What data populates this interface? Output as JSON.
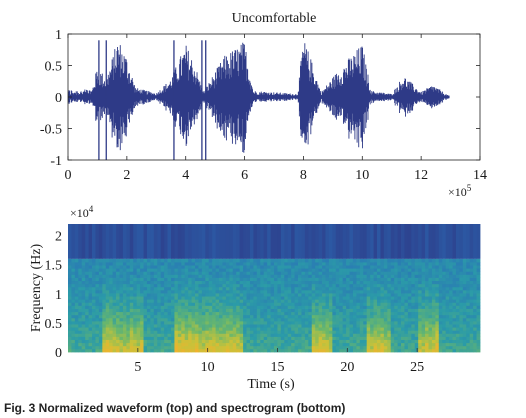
{
  "chart_data": [
    {
      "type": "line",
      "title": "Uncomfortable",
      "xlabel": "",
      "ylabel": "",
      "x_multiplier_label": "×10",
      "x_multiplier_exp": "5",
      "xlim": [
        0,
        14
      ],
      "ylim": [
        -1,
        1
      ],
      "x_ticks": [
        "0",
        "2",
        "4",
        "6",
        "8",
        "10",
        "12",
        "14"
      ],
      "y_ticks": [
        "-1",
        "-0.5",
        "0",
        "0.5",
        "1"
      ],
      "series": [
        {
          "color": "#2e3a87",
          "envelope_x": [
            0.8,
            1.0,
            1.3,
            1.7,
            2.0,
            2.3,
            3.0,
            3.5,
            4.0,
            4.3,
            4.6,
            5.3,
            6.0,
            6.3,
            7.8,
            8.0,
            8.3,
            8.6,
            9.3,
            10.0,
            10.3,
            11.0,
            11.4,
            12.0,
            12.4,
            12.9
          ],
          "envelope_amp": [
            0.08,
            0.5,
            0.3,
            0.95,
            0.65,
            0.15,
            0.06,
            0.3,
            0.85,
            0.55,
            0.08,
            0.65,
            0.9,
            0.1,
            0.05,
            0.95,
            0.55,
            0.08,
            0.5,
            0.85,
            0.1,
            0.05,
            0.35,
            0.08,
            0.2,
            0.03
          ]
        }
      ]
    },
    {
      "type": "heatmap",
      "title": "",
      "xlabel": "Time (s)",
      "ylabel": "Frequency (Hz)",
      "y_multiplier_label": "×10",
      "y_multiplier_exp": "4",
      "xlim": [
        0,
        29.5
      ],
      "ylim": [
        0,
        2.2
      ],
      "x_ticks": [
        "5",
        "10",
        "15",
        "20",
        "25"
      ],
      "y_ticks": [
        "0",
        "0.5",
        "1",
        "1.5",
        "2"
      ],
      "cutoff_frequency": 1.6,
      "colors": {
        "low": "#2e3a87",
        "mid": "#2f8fb0",
        "high": "#f3b12d"
      }
    }
  ],
  "caption": "Fig. 3  Normalized waveform (top) and spectrogram (bottom)"
}
